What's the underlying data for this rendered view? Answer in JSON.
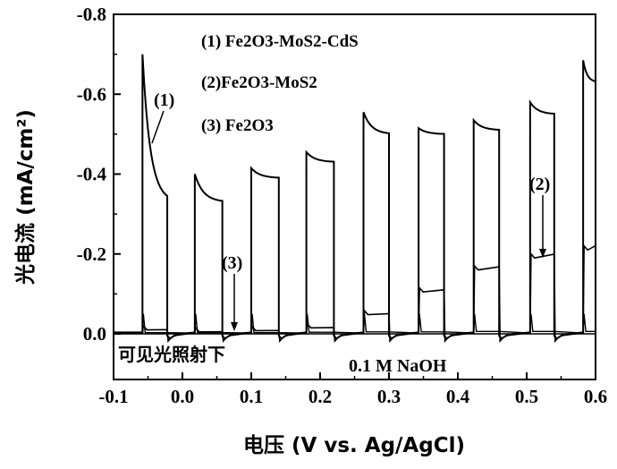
{
  "chart_data": {
    "type": "line",
    "ylabel": "光电流 (mA/cm²)",
    "xlabel": "电压 (V vs. Ag/AgCl)",
    "xlim": [
      -0.1,
      0.6
    ],
    "ylim": [
      0.0,
      -0.8
    ],
    "x_ticks": [
      "-0.1",
      "0.0",
      "0.1",
      "0.2",
      "0.3",
      "0.4",
      "0.5",
      "0.6"
    ],
    "y_ticks": [
      "0.0",
      "-0.2",
      "-0.4",
      "-0.6",
      "-0.8"
    ],
    "legend": [
      "(1) Fe2O3-MoS2-CdS",
      "(2)Fe2O3-MoS2",
      "(3) Fe2O3"
    ],
    "annotations": {
      "illumination": "可见光照射下",
      "electrolyte": "0.1 M NaOH",
      "label_1": "(1)",
      "label_2": "(2)",
      "label_3": "(3)"
    },
    "series": [
      {
        "name": "(1) Fe2O3-MoS2-CdS",
        "light_on_cycles": [
          {
            "x_on": -0.058,
            "x_off": -0.022,
            "peak": -0.7,
            "end": -0.33
          },
          {
            "x_on": 0.018,
            "x_off": 0.058,
            "peak": -0.4,
            "end": -0.33
          },
          {
            "x_on": 0.1,
            "x_off": 0.14,
            "peak": -0.415,
            "end": -0.39
          },
          {
            "x_on": 0.18,
            "x_off": 0.22,
            "peak": -0.455,
            "end": -0.43
          },
          {
            "x_on": 0.263,
            "x_off": 0.3,
            "peak": -0.555,
            "end": -0.5
          },
          {
            "x_on": 0.343,
            "x_off": 0.38,
            "peak": -0.515,
            "end": -0.5
          },
          {
            "x_on": 0.423,
            "x_off": 0.46,
            "peak": -0.535,
            "end": -0.51
          },
          {
            "x_on": 0.505,
            "x_off": 0.54,
            "peak": -0.58,
            "end": -0.55
          },
          {
            "x_on": 0.582,
            "x_off": 0.6,
            "peak": -0.685,
            "end": -0.63
          }
        ]
      },
      {
        "name": "(2)Fe2O3-MoS2",
        "light_on_cycles": [
          {
            "x_on": -0.058,
            "x_off": -0.022,
            "level": -0.01
          },
          {
            "x_on": 0.018,
            "x_off": 0.058,
            "level": -0.005
          },
          {
            "x_on": 0.1,
            "x_off": 0.14,
            "level": -0.008
          },
          {
            "x_on": 0.18,
            "x_off": 0.22,
            "level": -0.015
          },
          {
            "x_on": 0.263,
            "x_off": 0.3,
            "level": -0.048
          },
          {
            "x_on": 0.343,
            "x_off": 0.38,
            "level": -0.105
          },
          {
            "x_on": 0.423,
            "x_off": 0.46,
            "level": -0.16
          },
          {
            "x_on": 0.505,
            "x_off": 0.54,
            "level": -0.19
          },
          {
            "x_on": 0.582,
            "x_off": 0.6,
            "level": -0.21
          }
        ]
      },
      {
        "name": "(3) Fe2O3",
        "light_on_cycles": [
          {
            "x_on": -0.058,
            "x_off": -0.022,
            "level": -0.003
          },
          {
            "x_on": 0.018,
            "x_off": 0.058,
            "level": -0.003
          },
          {
            "x_on": 0.1,
            "x_off": 0.14,
            "level": -0.003
          },
          {
            "x_on": 0.18,
            "x_off": 0.22,
            "level": -0.004
          },
          {
            "x_on": 0.263,
            "x_off": 0.3,
            "level": -0.005
          },
          {
            "x_on": 0.343,
            "x_off": 0.38,
            "level": -0.005
          },
          {
            "x_on": 0.423,
            "x_off": 0.46,
            "level": -0.006
          },
          {
            "x_on": 0.505,
            "x_off": 0.54,
            "level": -0.006
          },
          {
            "x_on": 0.582,
            "x_off": 0.6,
            "level": -0.006
          }
        ]
      }
    ]
  }
}
